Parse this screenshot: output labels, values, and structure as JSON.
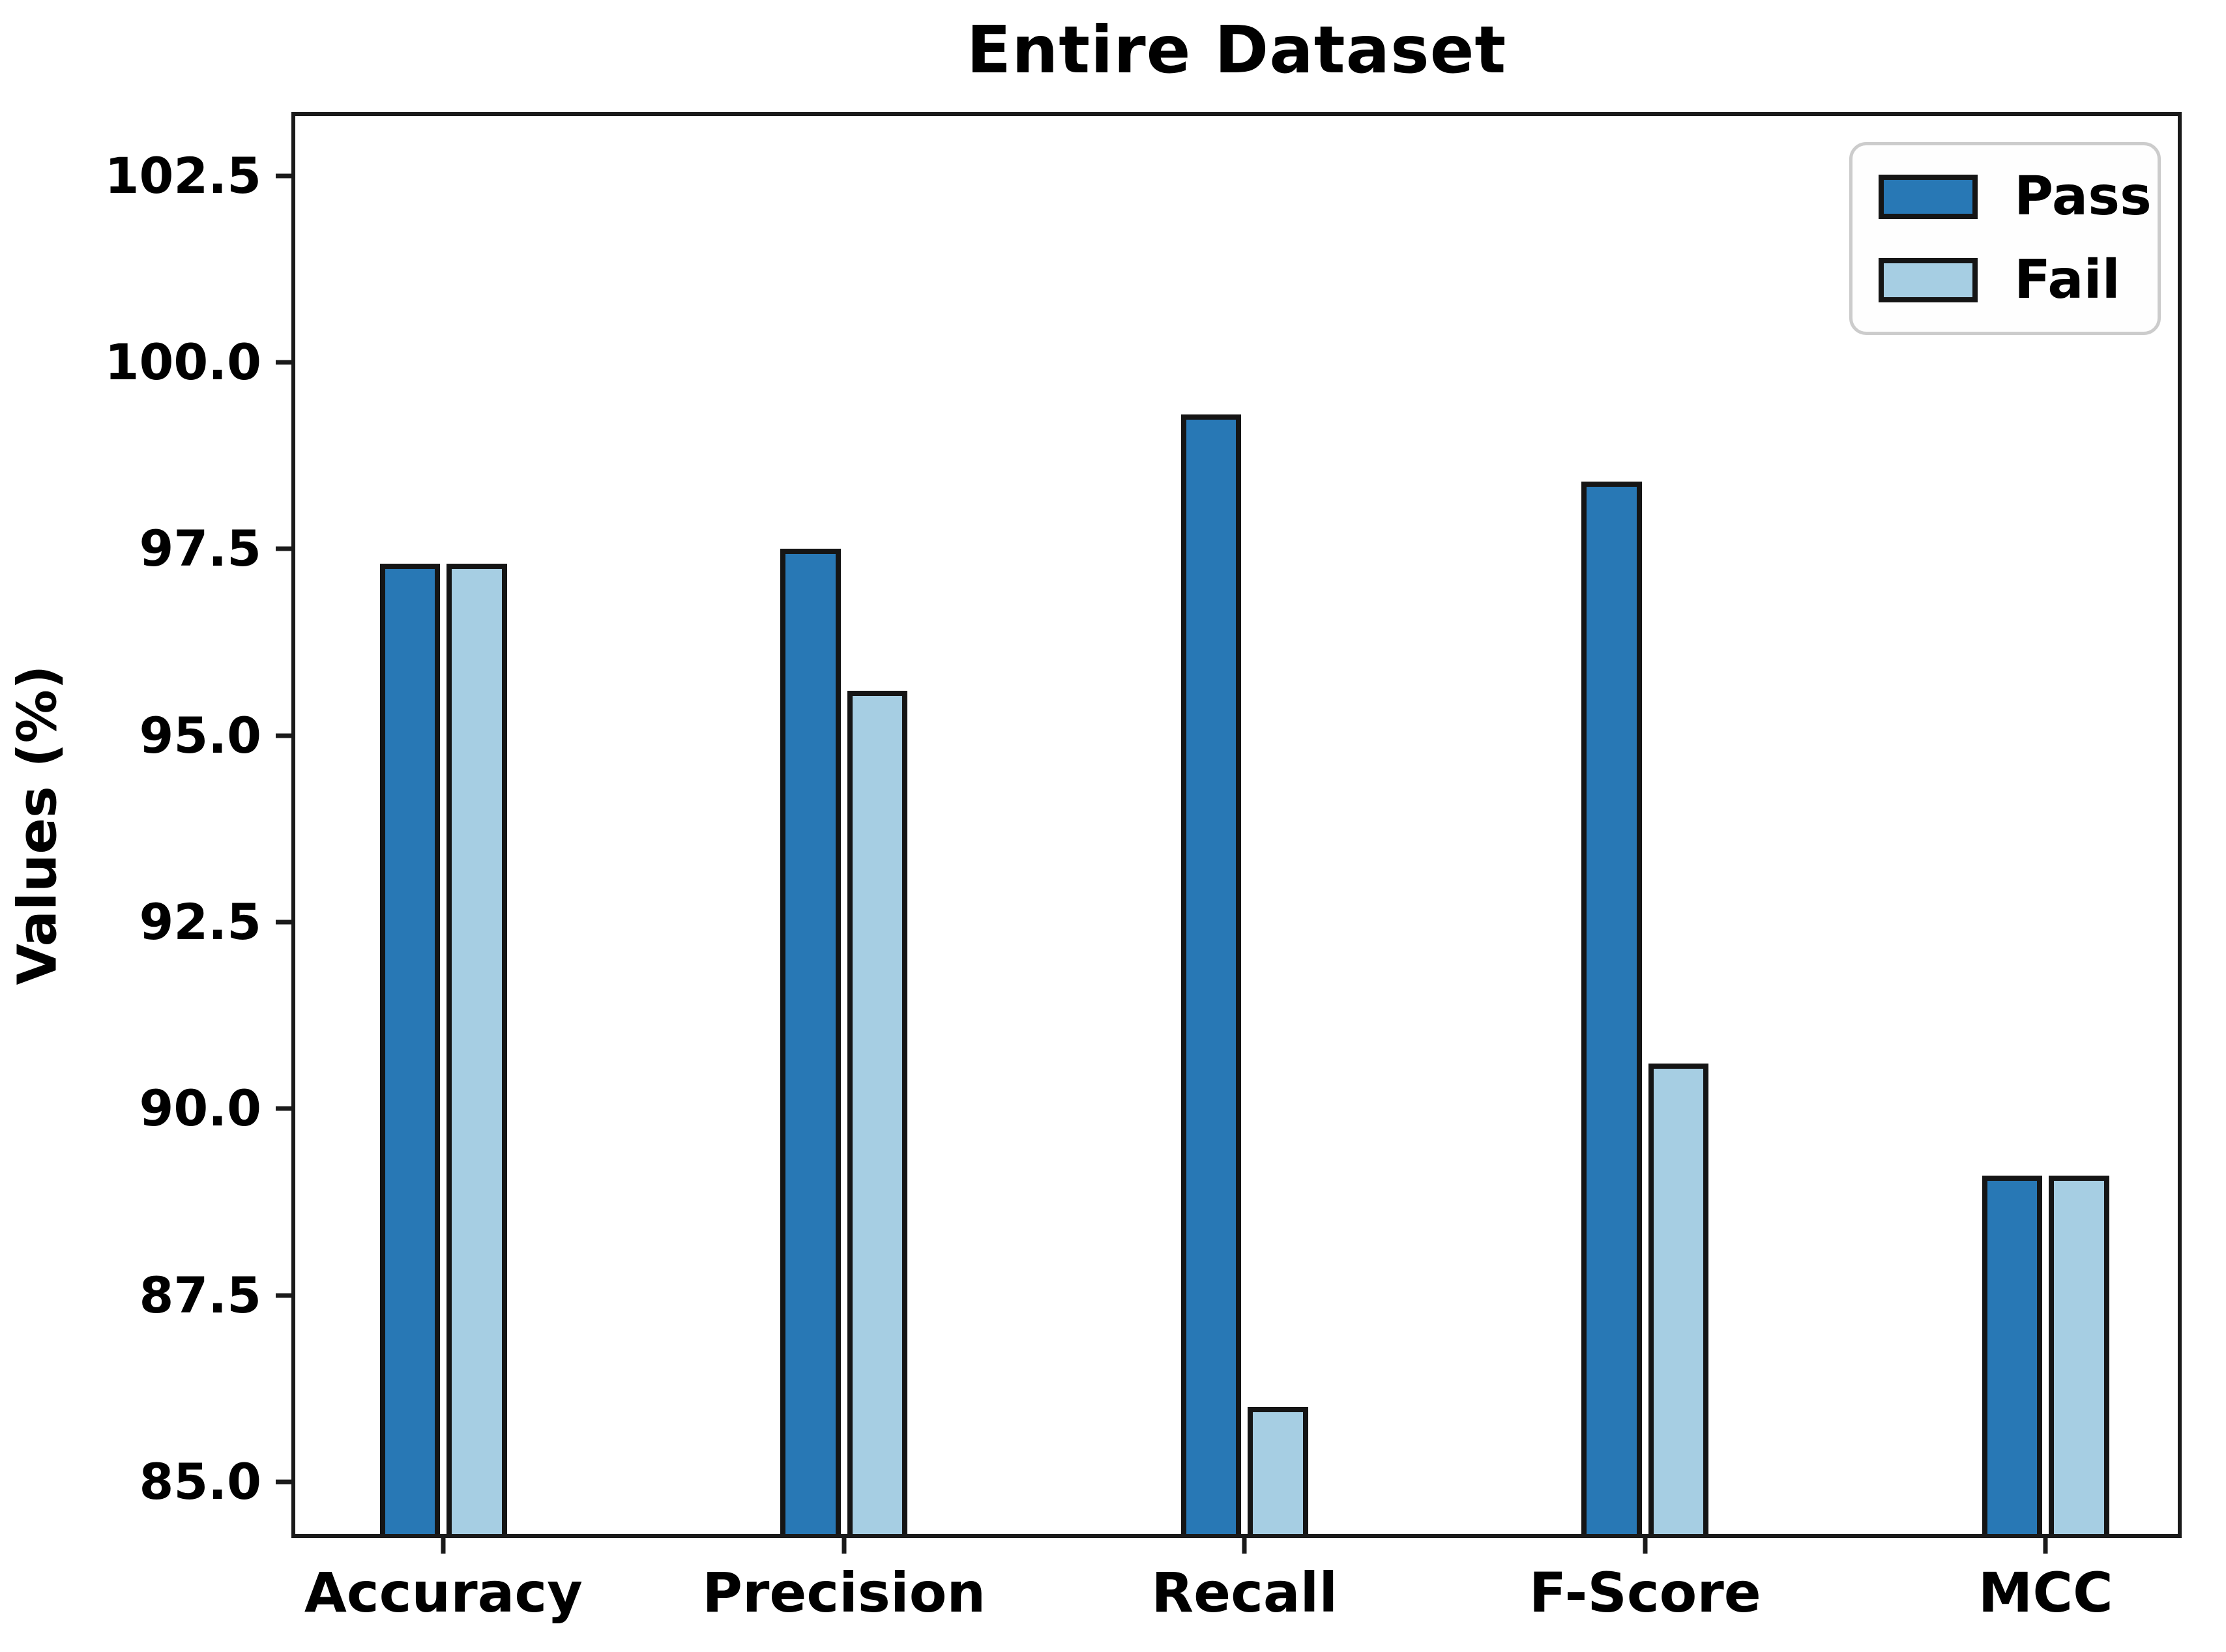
{
  "chart_data": {
    "type": "bar",
    "title": "Entire Dataset",
    "xlabel": "",
    "ylabel": "Values (%)",
    "categories": [
      "Accuracy",
      "Precision",
      "Recall",
      "F-Score",
      "MCC"
    ],
    "series": [
      {
        "name": "Pass",
        "color": "#2878b5",
        "values": [
          97.3,
          97.5,
          99.3,
          98.4,
          89.1
        ]
      },
      {
        "name": "Fail",
        "color": "#a6cee3",
        "values": [
          97.3,
          95.6,
          86.0,
          90.6,
          89.1
        ]
      }
    ],
    "ylim": [
      84.3,
      103.3
    ],
    "yticks": [
      102.5,
      100.0,
      97.5,
      95.0,
      92.5,
      90.0,
      87.5,
      85.0
    ],
    "ytick_labels": [
      "102.5",
      "100.0",
      "97.5",
      "95.0",
      "92.5",
      "90.0",
      "87.5",
      "85.0"
    ],
    "grid": false,
    "legend_position": "upper right",
    "colors": {
      "bar_edge": "#151515",
      "axis_spine": "#1a1a1a",
      "legend_border": "#cccccc",
      "text": "#000000"
    }
  }
}
